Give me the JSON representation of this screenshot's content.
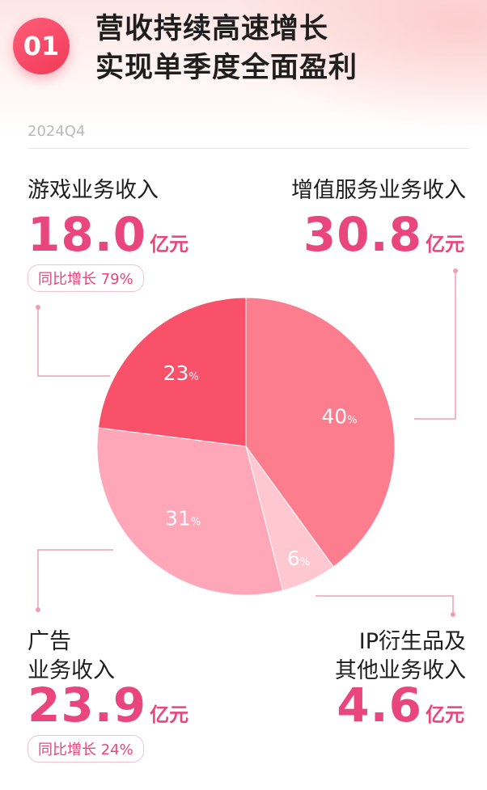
{
  "header": {
    "badge": "01",
    "title_line1": "营收持续高速增长",
    "title_line2": "实现单季度全面盈利",
    "period": "2024Q4"
  },
  "segments": {
    "game": {
      "label": "游戏业务收入",
      "value": "18.0",
      "unit": "亿元",
      "growth": "同比增长 79%"
    },
    "vas": {
      "label": "增值服务业务收入",
      "value": "30.8",
      "unit": "亿元"
    },
    "ads": {
      "label_line1": "广告",
      "label_line2": "业务收入",
      "value": "23.9",
      "unit": "亿元",
      "growth": "同比增长 24%"
    },
    "ip": {
      "label_line1": "IP衍生品及",
      "label_line2": "其他业务收入",
      "value": "4.6",
      "unit": "亿元"
    }
  },
  "chart_data": {
    "type": "pie",
    "series": [
      {
        "category": "增值服务业务收入",
        "value": 40,
        "label": "40",
        "color": "#fc7d8e"
      },
      {
        "category": "IP衍生品及其他业务收入",
        "value": 6,
        "label": "6",
        "color": "#ffc7d0"
      },
      {
        "category": "广告业务收入",
        "value": 31,
        "label": "31",
        "color": "#ffa6b9"
      },
      {
        "category": "游戏业务收入",
        "value": 23,
        "label": "23",
        "color": "#f9516a"
      }
    ],
    "pct_symbol": "%",
    "start": "12 o'clock, clockwise"
  }
}
